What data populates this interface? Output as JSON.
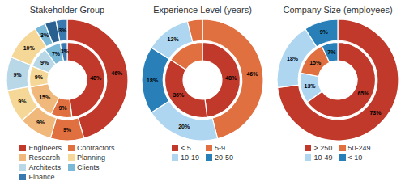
{
  "chart_data": [
    {
      "type": "pie",
      "title": "Stakeholder Group",
      "legend": "bottom",
      "series": [
        {
          "values": [
            48,
            9,
            15,
            9,
            9,
            7,
            3
          ],
          "colors": [
            "#c0392b",
            "#e07040",
            "#f0b87a",
            "#f5d898",
            "#b8d8e8",
            "#7ab8d8",
            "#3a78b0"
          ],
          "value_labels": [
            "48%",
            "9%",
            "15%",
            "9%",
            "9%",
            "7%",
            "3%"
          ]
        },
        {
          "values": [
            46,
            9,
            9,
            9,
            9,
            10,
            3,
            3,
            3
          ],
          "colors": [
            "#c0392b",
            "#e07040",
            "#f0b87a",
            "#f5d898",
            "#b8d8e8",
            "#f5d898",
            "#7ab8d8",
            "#2a6090",
            "#3a78b0"
          ],
          "value_labels": [
            "46%",
            "9%",
            "9%",
            "9%",
            "9%",
            "10%",
            "3%",
            null,
            "3%"
          ]
        }
      ],
      "legend_entries": [
        {
          "name": "Engineers",
          "color": "#c0392b"
        },
        {
          "name": "Contractors",
          "color": "#e07040"
        },
        {
          "name": "Research",
          "color": "#f0b87a"
        },
        {
          "name": "Planning",
          "color": "#f5d898"
        },
        {
          "name": "Architects",
          "color": "#b8d8e8"
        },
        {
          "name": "Clients",
          "color": "#7ab8d8"
        },
        {
          "name": "Finance",
          "color": "#3a78b0"
        }
      ]
    },
    {
      "type": "pie",
      "title": "Experience Level (years)",
      "legend": "bottom",
      "series": [
        {
          "values": [
            48,
            36,
            16
          ],
          "colors": [
            "#c0392b",
            "#c0392b",
            "#e07040"
          ],
          "value_labels": [
            "48%",
            "36%",
            null
          ]
        },
        {
          "values": [
            46,
            20,
            18,
            12,
            4
          ],
          "colors": [
            "#e07040",
            "#aed6f1",
            "#2980b9",
            "#aed6f1",
            "#e07040"
          ],
          "value_labels": [
            "46%",
            "20%",
            "18%",
            "12%",
            null
          ]
        }
      ],
      "legend_entries": [
        {
          "name": "< 5",
          "color": "#c0392b"
        },
        {
          "name": "5-9",
          "color": "#e07040"
        },
        {
          "name": "10-19",
          "color": "#aed6f1"
        },
        {
          "name": "20-50",
          "color": "#2980b9"
        }
      ]
    },
    {
      "type": "pie",
      "title": "Company Size (employees)",
      "legend": "bottom",
      "series": [
        {
          "values": [
            65,
            13,
            15,
            7
          ],
          "colors": [
            "#c0392b",
            "#aed6f1",
            "#e07040",
            "#2980b9"
          ],
          "value_labels": [
            "65%",
            "13%",
            "15%",
            "7%"
          ]
        },
        {
          "values": [
            73,
            18,
            9
          ],
          "colors": [
            "#c0392b",
            "#aed6f1",
            "#2980b9"
          ],
          "value_labels": [
            "73%",
            "18%",
            "9%"
          ]
        }
      ],
      "legend_entries": [
        {
          "name": "> 250",
          "color": "#c0392b"
        },
        {
          "name": "50-249",
          "color": "#e07040"
        },
        {
          "name": "10-49",
          "color": "#aed6f1"
        },
        {
          "name": "< 10",
          "color": "#2980b9"
        }
      ]
    }
  ]
}
